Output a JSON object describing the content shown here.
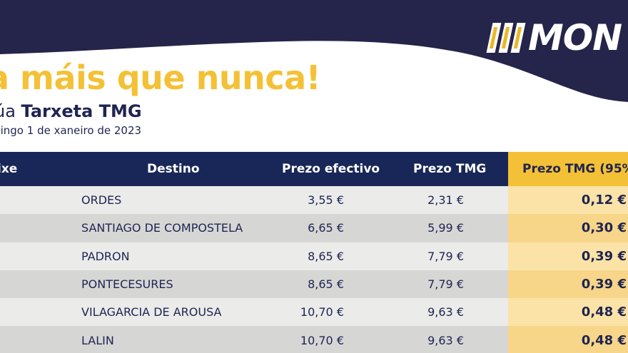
{
  "logo": {
    "text": "MON"
  },
  "headline": "a máis que nunca!",
  "subhead": {
    "prefix": "úa ",
    "strong": "Tarxeta TMG"
  },
  "date_line": "mingo 1 de xaneiro de 2023",
  "table": {
    "headers": {
      "col1": "ixe",
      "destino": "Destino",
      "efectivo": "Prezo efectivo",
      "tmg": "Prezo TMG",
      "tmg95": "Prezo TMG (95%"
    },
    "rows": [
      {
        "destino": "ORDES",
        "efectivo": "3,55 €",
        "tmg": "2,31 €",
        "tmg95": "0,12 €"
      },
      {
        "destino": "SANTIAGO DE COMPOSTELA",
        "efectivo": "6,65 €",
        "tmg": "5,99 €",
        "tmg95": "0,30 €"
      },
      {
        "destino": "PADRON",
        "efectivo": "8,65 €",
        "tmg": "7,79 €",
        "tmg95": "0,39 €"
      },
      {
        "destino": "PONTECESURES",
        "efectivo": "8,65 €",
        "tmg": "7,79 €",
        "tmg95": "0,39 €"
      },
      {
        "destino": "VILAGARCIA DE AROUSA",
        "efectivo": "10,70 €",
        "tmg": "9,63 €",
        "tmg95": "0,48 €"
      },
      {
        "destino": "LALIN",
        "efectivo": "10,70 €",
        "tmg": "9,63 €",
        "tmg95": "0,48 €"
      }
    ]
  },
  "colors": {
    "navy": "#1f2551",
    "header_navy": "#182757",
    "accent_yellow": "#f4c136",
    "row_light": "#ebebea",
    "row_dark": "#d6d6d5"
  }
}
